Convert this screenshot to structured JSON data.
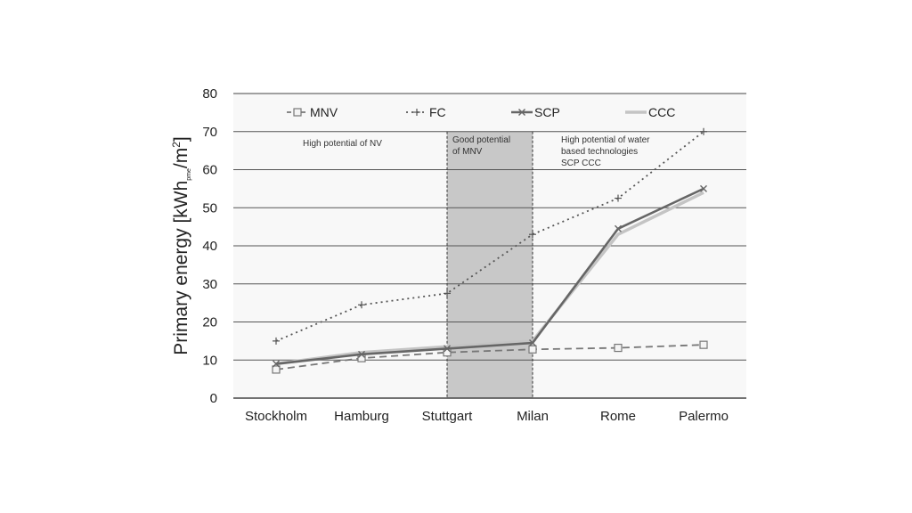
{
  "chart_data": {
    "type": "line",
    "title": "",
    "xlabel": "",
    "ylabel": "Primary energy [kWh",
    "ylabel_sub": "pme",
    "ylabel_end": "/m",
    "ylabel_sup": "2",
    "ylabel_close": "]",
    "ylim": [
      0,
      80
    ],
    "yticks": [
      0,
      10,
      20,
      30,
      40,
      50,
      60,
      70,
      80
    ],
    "grid": true,
    "legend_position": "top",
    "categories": [
      "Stockholm",
      "Hamburg",
      "Stuttgart",
      "Milan",
      "Rome",
      "Palermo"
    ],
    "series": [
      {
        "name": "MNV",
        "values": [
          7.5,
          10.5,
          12,
          12.8,
          13.2,
          14
        ],
        "color": "#777777",
        "dash": "8,5",
        "marker": "square"
      },
      {
        "name": "FC",
        "values": [
          15,
          24.5,
          27.5,
          43,
          52.5,
          70
        ],
        "color": "#555555",
        "dash": "2,4",
        "marker": "plus"
      },
      {
        "name": "SCP",
        "values": [
          9,
          11.5,
          13,
          14.5,
          44.5,
          55
        ],
        "color": "#666666",
        "dash": "",
        "marker": "cross"
      },
      {
        "name": "CCC",
        "values": [
          9,
          12,
          13.5,
          15,
          43,
          54
        ],
        "color": "#c4c4c4",
        "dash": "",
        "marker": "none"
      }
    ],
    "shaded_region": {
      "from_category": "Stuttgart",
      "to_category": "Milan",
      "color": "#c8c8c8"
    },
    "annotations": [
      {
        "lines": [
          "High potential of NV"
        ]
      },
      {
        "lines": [
          "Good potential",
          "of MNV"
        ]
      },
      {
        "lines": [
          "High potential of water",
          "based technologies",
          "SCP CCC"
        ]
      }
    ]
  }
}
